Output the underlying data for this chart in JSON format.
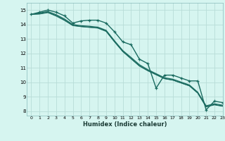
{
  "title": "",
  "xlabel": "Humidex (Indice chaleur)",
  "ylabel": "",
  "background_color": "#d6f5f0",
  "grid_color": "#b8ddd8",
  "line_color": "#1a6b60",
  "xlim": [
    -0.5,
    23
  ],
  "ylim": [
    7.7,
    15.5
  ],
  "yticks": [
    8,
    9,
    10,
    11,
    12,
    13,
    14,
    15
  ],
  "xticks": [
    0,
    1,
    2,
    3,
    4,
    5,
    6,
    7,
    8,
    9,
    10,
    11,
    12,
    13,
    14,
    15,
    16,
    17,
    18,
    19,
    20,
    21,
    22,
    23
  ],
  "series": [
    {
      "x": [
        0,
        1,
        2,
        3,
        4,
        5,
        6,
        7,
        8,
        9,
        10,
        11,
        12,
        13,
        14,
        15,
        16,
        17,
        18,
        19,
        20,
        21,
        22,
        23
      ],
      "y": [
        14.7,
        14.85,
        15.0,
        14.85,
        14.6,
        14.1,
        14.25,
        14.3,
        14.3,
        14.1,
        13.5,
        12.8,
        12.6,
        11.6,
        11.3,
        9.6,
        10.5,
        10.5,
        10.3,
        10.1,
        10.1,
        8.1,
        8.7,
        8.6
      ],
      "marker": "+",
      "lw": 1.0
    },
    {
      "x": [
        0,
        1,
        2,
        3,
        4,
        5,
        6,
        7,
        8,
        9,
        10,
        11,
        12,
        13,
        14,
        15,
        16,
        17,
        18,
        19,
        20,
        21,
        22,
        23
      ],
      "y": [
        14.7,
        14.8,
        14.9,
        14.68,
        14.38,
        14.0,
        13.92,
        13.88,
        13.82,
        13.6,
        12.88,
        12.2,
        11.72,
        11.22,
        10.88,
        10.6,
        10.32,
        10.22,
        10.02,
        9.82,
        9.32,
        8.38,
        8.52,
        8.42
      ],
      "marker": null,
      "lw": 0.9
    },
    {
      "x": [
        0,
        1,
        2,
        3,
        4,
        5,
        6,
        7,
        8,
        9,
        10,
        11,
        12,
        13,
        14,
        15,
        16,
        17,
        18,
        19,
        20,
        21,
        22,
        23
      ],
      "y": [
        14.7,
        14.75,
        14.85,
        14.62,
        14.32,
        13.95,
        13.87,
        13.82,
        13.77,
        13.55,
        12.82,
        12.15,
        11.65,
        11.15,
        10.82,
        10.55,
        10.27,
        10.17,
        9.97,
        9.77,
        9.27,
        8.33,
        8.47,
        8.37
      ],
      "marker": null,
      "lw": 0.9
    },
    {
      "x": [
        0,
        1,
        2,
        3,
        4,
        5,
        6,
        7,
        8,
        9,
        10,
        11,
        12,
        13,
        14,
        15,
        16,
        17,
        18,
        19,
        20,
        21,
        22,
        23
      ],
      "y": [
        14.7,
        14.72,
        14.82,
        14.58,
        14.28,
        13.92,
        13.85,
        13.8,
        13.75,
        13.52,
        12.8,
        12.12,
        11.62,
        11.12,
        10.8,
        10.52,
        10.25,
        10.15,
        9.95,
        9.75,
        9.25,
        8.3,
        8.44,
        8.34
      ],
      "marker": null,
      "lw": 0.7
    }
  ]
}
